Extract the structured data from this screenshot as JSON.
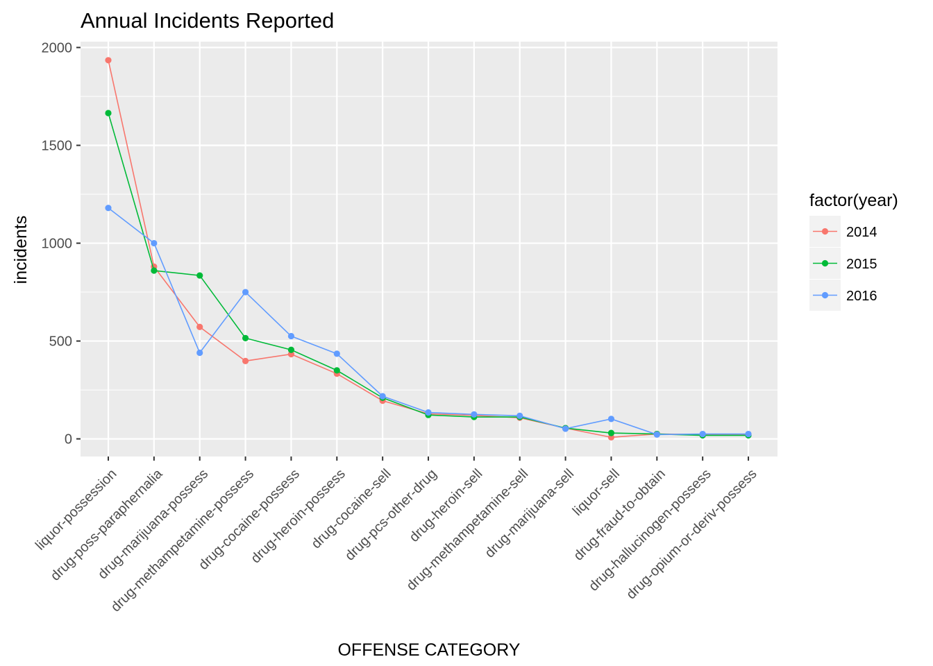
{
  "chart_data": {
    "type": "line",
    "title": "Annual Incidents Reported",
    "xlabel": "OFFENSE CATEGORY",
    "ylabel": "incidents",
    "ylim": [
      -90,
      2030
    ],
    "yticks": [
      0,
      500,
      1000,
      1500,
      2000
    ],
    "grid": true,
    "legend_title": "factor(year)",
    "legend_position": "right",
    "categories": [
      "liquor-possession",
      "drug-poss-paraphernalia",
      "drug-marijuana-possess",
      "drug-methampetamine-possess",
      "drug-cocaine-possess",
      "drug-heroin-possess",
      "drug-cocaine-sell",
      "drug-pcs-other-drug",
      "drug-heroin-sell",
      "drug-methampetamine-sell",
      "drug-marijuana-sell",
      "liquor-sell",
      "drug-fraud-to-obtain",
      "drug-hallucinogen-possess",
      "drug-opium-or-deriv-possess"
    ],
    "series": [
      {
        "name": "2014",
        "color": "#F8766D",
        "values": [
          1935,
          880,
          572,
          398,
          433,
          333,
          195,
          128,
          120,
          108,
          55,
          8,
          25,
          22,
          22
        ]
      },
      {
        "name": "2015",
        "color": "#00BA38",
        "values": [
          1665,
          860,
          835,
          515,
          455,
          350,
          210,
          122,
          112,
          112,
          55,
          30,
          25,
          18,
          18
        ]
      },
      {
        "name": "2016",
        "color": "#619CFF",
        "values": [
          1180,
          1000,
          440,
          750,
          525,
          435,
          218,
          135,
          125,
          118,
          52,
          102,
          22,
          25,
          25
        ]
      }
    ]
  }
}
